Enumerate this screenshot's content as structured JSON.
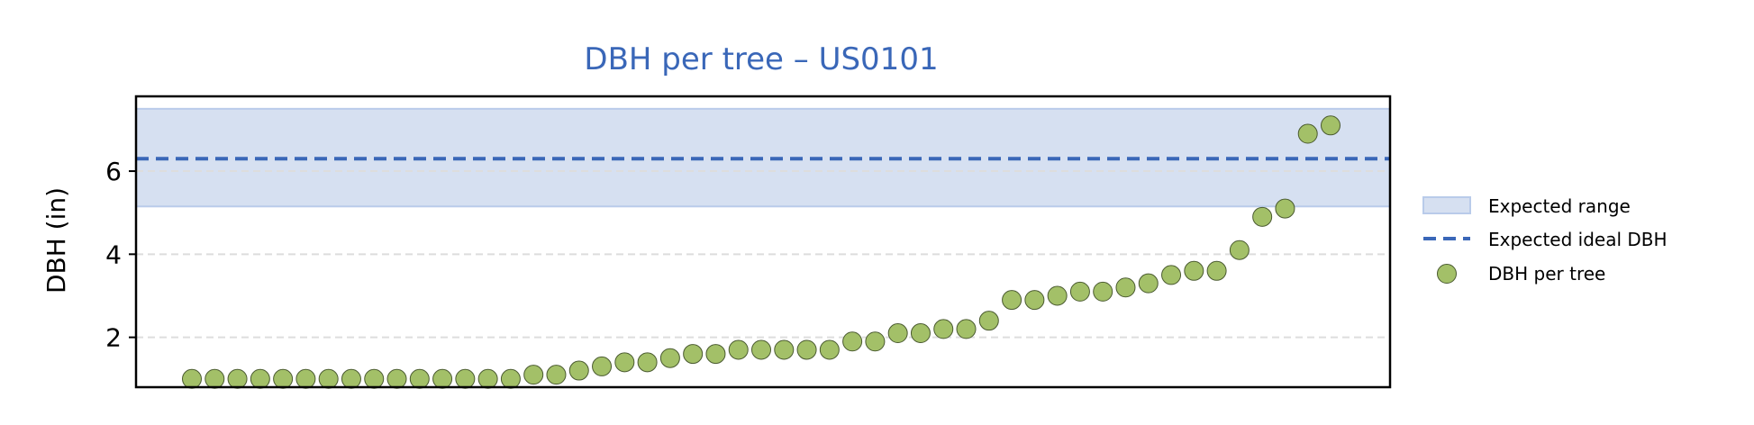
{
  "chart_data": {
    "type": "scatter",
    "title": "DBH per tree – US0101",
    "xlabel": "",
    "ylabel": "DBH (in)",
    "ylim": [
      0.8,
      7.8
    ],
    "y_ticks": [
      2,
      4,
      6
    ],
    "x_ticks_visible": false,
    "grid": "y-dashed",
    "legend_position": "right",
    "expected_range": {
      "label": "Expected range",
      "low": 5.15,
      "high": 7.5
    },
    "expected_ideal": {
      "label": "Expected ideal DBH",
      "value": 6.3
    },
    "series": [
      {
        "name": "DBH per tree",
        "values": [
          1.0,
          1.0,
          1.0,
          1.0,
          1.0,
          1.0,
          1.0,
          1.0,
          1.0,
          1.0,
          1.0,
          1.0,
          1.0,
          1.0,
          1.0,
          1.1,
          1.1,
          1.2,
          1.3,
          1.4,
          1.4,
          1.5,
          1.6,
          1.6,
          1.7,
          1.7,
          1.7,
          1.7,
          1.7,
          1.9,
          1.9,
          2.1,
          2.1,
          2.2,
          2.2,
          2.4,
          2.9,
          2.9,
          3.0,
          3.1,
          3.1,
          3.2,
          3.3,
          3.5,
          3.6,
          3.6,
          4.1,
          4.9,
          5.1,
          6.9,
          7.1
        ]
      }
    ],
    "colors": {
      "title": "#3a67b8",
      "band_fill": "#d6e0f1",
      "band_edge": "#b9cbea",
      "ideal_line": "#3a67b8",
      "point_fill": "#a3c068",
      "point_edge": "#4a5a30",
      "grid": "#dddddd"
    }
  }
}
